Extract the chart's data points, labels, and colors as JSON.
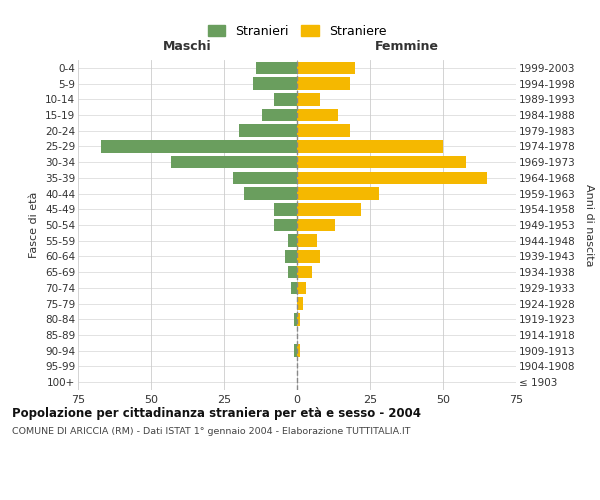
{
  "age_groups": [
    "100+",
    "95-99",
    "90-94",
    "85-89",
    "80-84",
    "75-79",
    "70-74",
    "65-69",
    "60-64",
    "55-59",
    "50-54",
    "45-49",
    "40-44",
    "35-39",
    "30-34",
    "25-29",
    "20-24",
    "15-19",
    "10-14",
    "5-9",
    "0-4"
  ],
  "birth_years": [
    "≤ 1903",
    "1904-1908",
    "1909-1913",
    "1914-1918",
    "1919-1923",
    "1924-1928",
    "1929-1933",
    "1934-1938",
    "1939-1943",
    "1944-1948",
    "1949-1953",
    "1954-1958",
    "1959-1963",
    "1964-1968",
    "1969-1973",
    "1974-1978",
    "1979-1983",
    "1984-1988",
    "1989-1993",
    "1994-1998",
    "1999-2003"
  ],
  "maschi": [
    0,
    0,
    1,
    0,
    1,
    0,
    2,
    3,
    4,
    3,
    8,
    8,
    18,
    22,
    43,
    67,
    20,
    12,
    8,
    15,
    14
  ],
  "femmine": [
    0,
    0,
    1,
    0,
    1,
    2,
    3,
    5,
    8,
    7,
    13,
    22,
    28,
    65,
    58,
    50,
    18,
    14,
    8,
    18,
    20
  ],
  "maschi_color": "#6a9e5e",
  "femmine_color": "#f5b800",
  "background_color": "#ffffff",
  "grid_color": "#cccccc",
  "title": "Popolazione per cittadinanza straniera per età e sesso - 2004",
  "subtitle": "COMUNE DI ARICCIA (RM) - Dati ISTAT 1° gennaio 2004 - Elaborazione TUTTITALIA.IT",
  "header_left": "Maschi",
  "header_right": "Femmine",
  "ylabel_left": "Fasce di età",
  "ylabel_right": "Anni di nascita",
  "legend_maschi": "Stranieri",
  "legend_femmine": "Straniere",
  "xlim": 75,
  "bar_height": 0.8,
  "xticks": [
    -75,
    -50,
    -25,
    0,
    25,
    50,
    75
  ],
  "xtick_labels": [
    "75",
    "50",
    "25",
    "0",
    "25",
    "50",
    "75"
  ]
}
